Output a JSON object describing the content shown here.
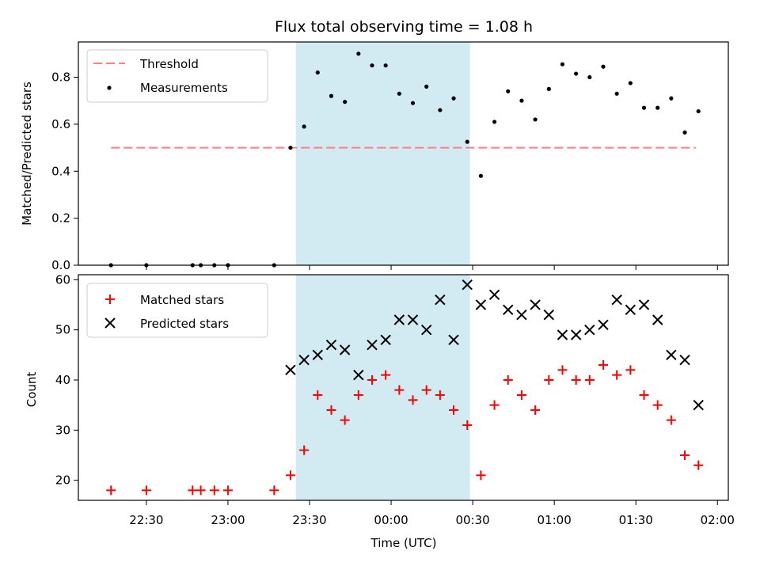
{
  "chart_data": [
    {
      "type": "scatter",
      "title": "Flux total observing time = 1.08 h",
      "xlabel": "",
      "ylabel": "Matched/Predicted stars",
      "ylim": [
        0.0,
        0.95
      ],
      "yticks": [
        "0.0",
        "0.2",
        "0.4",
        "0.6",
        "0.8"
      ],
      "shaded_interval": [
        "23:25",
        "00:29"
      ],
      "shade_color": "#add8e6",
      "legend_position": "upper left",
      "threshold": {
        "name": "Threshold",
        "value": 0.5,
        "x_range": [
          "22:17",
          "01:52"
        ],
        "color": "#ff7f7f",
        "style": "dashed"
      },
      "series": [
        {
          "name": "Measurements",
          "color": "#000000",
          "marker": "dot",
          "x": [
            "22:17",
            "22:30",
            "22:47",
            "22:50",
            "22:55",
            "23:00",
            "23:17",
            "23:23",
            "23:28",
            "23:33",
            "23:38",
            "23:43",
            "23:48",
            "23:53",
            "23:58",
            "00:03",
            "00:08",
            "00:13",
            "00:18",
            "00:23",
            "00:28",
            "00:33",
            "00:38",
            "00:43",
            "00:48",
            "00:53",
            "00:58",
            "01:03",
            "01:08",
            "01:13",
            "01:18",
            "01:23",
            "01:28",
            "01:33",
            "01:38",
            "01:43",
            "01:48",
            "01:53"
          ],
          "y": [
            0.0,
            0.0,
            0.0,
            0.0,
            0.0,
            0.0,
            0.0,
            0.5,
            0.59,
            0.82,
            0.72,
            0.695,
            0.9,
            0.85,
            0.85,
            0.73,
            0.69,
            0.76,
            0.66,
            0.71,
            0.525,
            0.38,
            0.61,
            0.74,
            0.7,
            0.62,
            0.75,
            0.855,
            0.815,
            0.8,
            0.845,
            0.73,
            0.775,
            0.67,
            0.67,
            0.71,
            0.565,
            0.655
          ]
        }
      ]
    },
    {
      "type": "scatter",
      "title": "",
      "xlabel": "Time (UTC)",
      "ylabel": "Count",
      "ylim": [
        16,
        61
      ],
      "yticks": [
        "20",
        "30",
        "40",
        "50",
        "60"
      ],
      "xlim": [
        "22:05",
        "02:04"
      ],
      "xticks": [
        "22:30",
        "23:00",
        "23:30",
        "00:00",
        "00:30",
        "01:00",
        "01:30",
        "02:00"
      ],
      "shaded_interval": [
        "23:25",
        "00:29"
      ],
      "shade_color": "#add8e6",
      "legend_position": "upper left",
      "series": [
        {
          "name": "Matched stars",
          "color": "#ff0000",
          "marker": "plus",
          "x": [
            "22:17",
            "22:30",
            "22:47",
            "22:50",
            "22:55",
            "23:00",
            "23:17",
            "23:23",
            "23:28",
            "23:33",
            "23:38",
            "23:43",
            "23:48",
            "23:53",
            "23:58",
            "00:03",
            "00:08",
            "00:13",
            "00:18",
            "00:23",
            "00:28",
            "00:33",
            "00:38",
            "00:43",
            "00:48",
            "00:53",
            "00:58",
            "01:03",
            "01:08",
            "01:13",
            "01:18",
            "01:23",
            "01:28",
            "01:33",
            "01:38",
            "01:43",
            "01:48",
            "01:53"
          ],
          "y": [
            18,
            18,
            18,
            18,
            18,
            18,
            18,
            21,
            26,
            37,
            34,
            32,
            37,
            40,
            41,
            38,
            36,
            38,
            37,
            34,
            31,
            21,
            35,
            40,
            37,
            34,
            40,
            42,
            40,
            40,
            43,
            41,
            42,
            37,
            35,
            32,
            25,
            23
          ]
        },
        {
          "name": "Predicted stars",
          "color": "#000000",
          "marker": "x",
          "x": [
            "23:23",
            "23:28",
            "23:33",
            "23:38",
            "23:43",
            "23:48",
            "23:53",
            "23:58",
            "00:03",
            "00:08",
            "00:13",
            "00:18",
            "00:23",
            "00:28",
            "00:33",
            "00:38",
            "00:43",
            "00:48",
            "00:53",
            "00:58",
            "01:03",
            "01:08",
            "01:13",
            "01:18",
            "01:23",
            "01:28",
            "01:33",
            "01:38",
            "01:43",
            "01:48",
            "01:53"
          ],
          "y": [
            42,
            44,
            45,
            47,
            46,
            41,
            47,
            48,
            52,
            52,
            50,
            56,
            48,
            59,
            55,
            57,
            54,
            53,
            55,
            53,
            49,
            49,
            50,
            51,
            56,
            54,
            55,
            52,
            45,
            44,
            35
          ]
        }
      ]
    }
  ]
}
